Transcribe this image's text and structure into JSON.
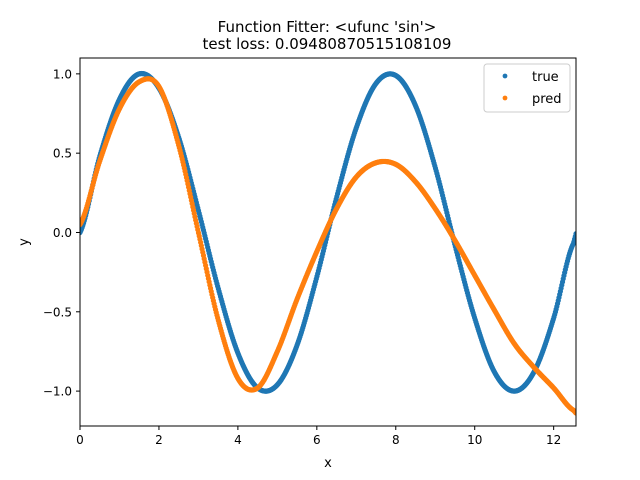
{
  "chart_data": {
    "type": "scatter",
    "title": "Function Fitter: <ufunc 'sin'>",
    "subtitle": "test loss: 0.09480870515108109",
    "xlabel": "x",
    "ylabel": "y",
    "xlim": [
      0,
      12.566
    ],
    "ylim": [
      -1.22,
      1.1
    ],
    "xticks": [
      0,
      2,
      4,
      6,
      8,
      10,
      12
    ],
    "xtick_labels": [
      "0",
      "2",
      "4",
      "6",
      "8",
      "10",
      "12"
    ],
    "yticks": [
      -1.0,
      -0.5,
      0.0,
      0.5,
      1.0
    ],
    "ytick_labels": [
      "−1.0",
      "−0.5",
      "0.0",
      "0.5",
      "1.0"
    ],
    "grid": false,
    "legend_position": "top-right",
    "x": [
      0,
      0.5,
      1.0,
      1.5,
      2.0,
      2.5,
      3.0,
      3.5,
      4.0,
      4.5,
      5.0,
      5.5,
      6.0,
      6.5,
      7.0,
      7.5,
      8.0,
      8.5,
      9.0,
      9.5,
      10.0,
      10.5,
      11.0,
      11.5,
      12.0,
      12.5
    ],
    "series": [
      {
        "name": "true",
        "color": "#1f77b4",
        "values": [
          0.0,
          0.48,
          0.84,
          1.0,
          0.91,
          0.6,
          0.14,
          -0.35,
          -0.76,
          -0.98,
          -0.96,
          -0.71,
          -0.28,
          0.22,
          0.66,
          0.94,
          0.99,
          0.8,
          0.41,
          -0.08,
          -0.54,
          -0.88,
          -1.0,
          -0.88,
          -0.54,
          -0.07
        ]
      },
      {
        "name": "pred",
        "color": "#ff7f0e",
        "values": [
          0.05,
          0.45,
          0.78,
          0.95,
          0.92,
          0.55,
          0.0,
          -0.55,
          -0.92,
          -0.98,
          -0.75,
          -0.42,
          -0.12,
          0.15,
          0.35,
          0.44,
          0.43,
          0.32,
          0.15,
          -0.05,
          -0.27,
          -0.49,
          -0.7,
          -0.85,
          -0.98,
          -1.12
        ]
      }
    ]
  }
}
